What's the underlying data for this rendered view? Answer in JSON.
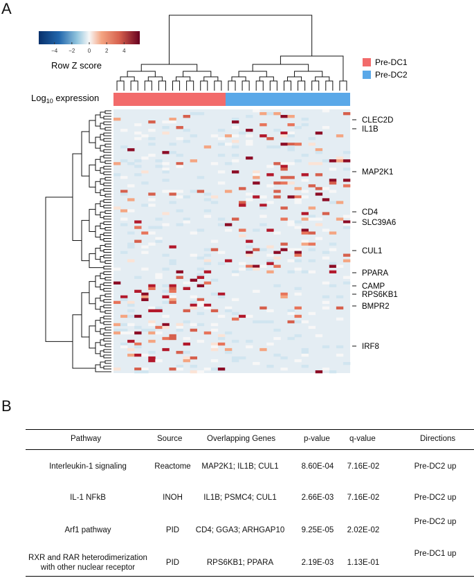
{
  "panel_a": {
    "letter": "A",
    "colorbar": {
      "title": "Row Z score",
      "ticks": [
        "−4",
        "−2",
        "0",
        "2",
        "4"
      ],
      "tick_values": [
        -4,
        -2,
        0,
        2,
        4
      ],
      "range": [
        -5.8,
        5.8
      ]
    },
    "annotation_label_base": "Log",
    "annotation_label_sub": "10",
    "annotation_label_rest": " expression",
    "legend": [
      {
        "label": "Pre-DC1",
        "color": "#f26b6b"
      },
      {
        "label": "Pre-DC2",
        "color": "#5aa8e8"
      }
    ],
    "group_counts": {
      "Pre-DC1": 16,
      "Pre-DC2": 18
    },
    "gene_labels": [
      "CLEC2D",
      "IL1B",
      "MAP2K1",
      "CD4",
      "SLC39A6",
      "CUL1",
      "PPARA",
      "CAMP",
      "RPS6KB1",
      "BMPR2",
      "IRF8"
    ],
    "colors": {
      "low": "#08306b",
      "mid": "#f7f7f7",
      "high": "#67001f",
      "background": "#e4edf3"
    }
  },
  "panel_b": {
    "letter": "B",
    "headers": [
      "Pathway",
      "Source",
      "Overlapping Genes",
      "p-value",
      "q-value",
      "Directions"
    ],
    "rows": [
      {
        "pathway": "Interleukin-1 signaling",
        "pathway2": "",
        "source": "Reactome",
        "genes": "MAP2K1; IL1B; CUL1",
        "p": "8.60E-04",
        "q": "7.16E-02",
        "direction": "Pre-DC2 up"
      },
      {
        "pathway": "IL-1 NFkB",
        "pathway2": "",
        "source": "INOH",
        "genes": "IL1B; PSMC4; CUL1",
        "p": "2.66E-03",
        "q": "7.16E-02",
        "direction": "Pre-DC2 up"
      },
      {
        "pathway": "Arf1 pathway",
        "pathway2": "",
        "source": "PID",
        "genes": "CD4; GGA3; ARHGAP10",
        "p": "9.25E-05",
        "q": "2.02E-02",
        "direction": "Pre-DC2 up"
      },
      {
        "pathway": "RXR and RAR heterodimerization",
        "pathway2": "with other nuclear receptor",
        "source": "PID",
        "genes": "RPS6KB1; PPARA",
        "p": "2.19E-03",
        "q": "1.13E-01",
        "direction": "Pre-DC1 up"
      }
    ]
  }
}
